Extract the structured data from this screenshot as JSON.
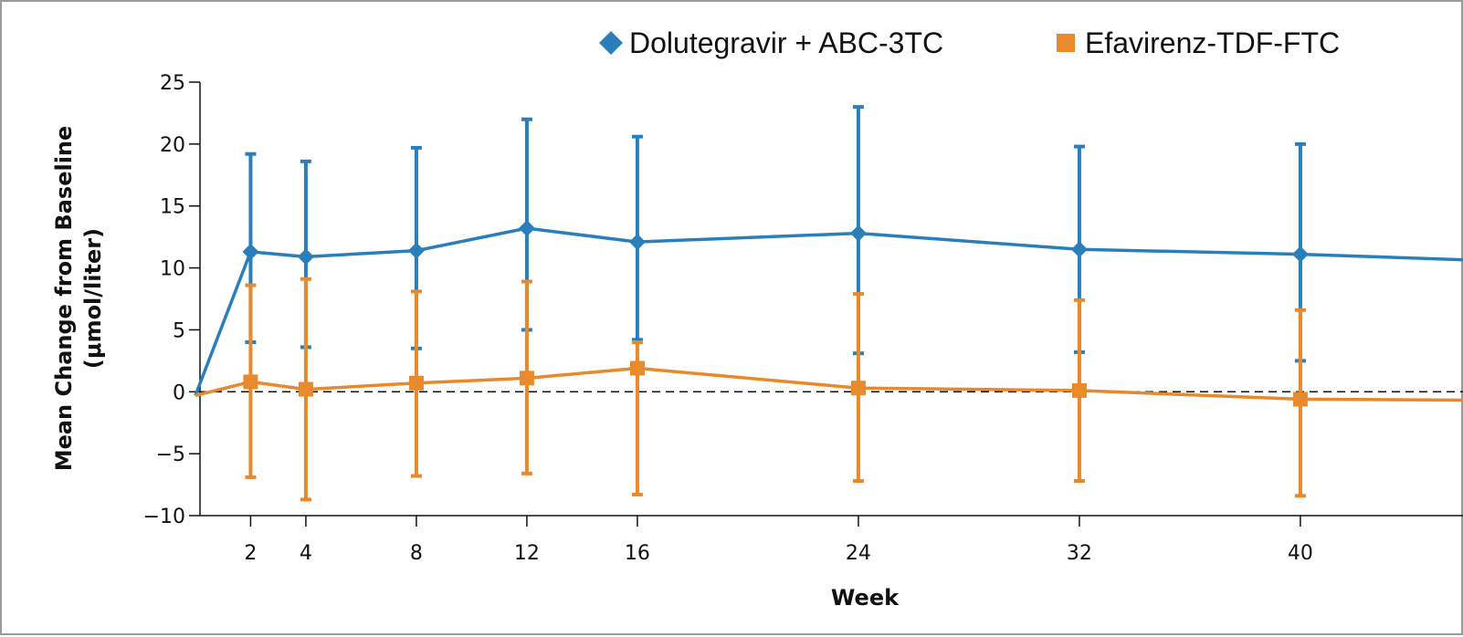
{
  "chart_data": {
    "type": "line",
    "xlabel": "Week",
    "ylabel_line1": "Mean Change from Baseline",
    "ylabel_line2": "(μmol/liter)",
    "ylim": [
      -10,
      25
    ],
    "yticks": [
      -10,
      -5,
      0,
      5,
      10,
      15,
      20,
      25
    ],
    "ytick_labels": [
      "−10",
      "−5",
      "0",
      "5",
      "10",
      "15",
      "20",
      "25"
    ],
    "xticks": [
      2,
      4,
      8,
      12,
      16,
      24,
      32,
      40
    ],
    "xtick_labels": [
      "2",
      "4",
      "8",
      "12",
      "16",
      "24",
      "32",
      "40"
    ],
    "reference_line": 0,
    "legend_position": "top-right",
    "series": [
      {
        "name": "Dolutegravir + ABC-3TC",
        "color": "#2a7fba",
        "marker": "diamond",
        "x": [
          0,
          2,
          4,
          8,
          12,
          16,
          24,
          32,
          40,
          48
        ],
        "y": [
          -0.3,
          11.3,
          10.9,
          11.4,
          13.2,
          12.1,
          12.8,
          11.5,
          11.1,
          10.5
        ],
        "err_low": [
          null,
          4.0,
          3.6,
          3.5,
          5.0,
          4.2,
          3.1,
          3.2,
          2.5,
          null
        ],
        "err_high": [
          null,
          19.2,
          18.6,
          19.7,
          22.0,
          20.6,
          23.0,
          19.8,
          20.0,
          null
        ]
      },
      {
        "name": "Efavirenz-TDF-FTC",
        "color": "#e8892b",
        "marker": "square",
        "x": [
          0,
          2,
          4,
          8,
          12,
          16,
          24,
          32,
          40,
          48
        ],
        "y": [
          -0.3,
          0.8,
          0.2,
          0.7,
          1.1,
          1.9,
          0.3,
          0.1,
          -0.6,
          -0.7
        ],
        "err_low": [
          null,
          -6.9,
          -8.7,
          -6.8,
          -6.6,
          -8.3,
          -7.2,
          -7.2,
          -8.4,
          null
        ],
        "err_high": [
          null,
          8.6,
          9.1,
          8.1,
          8.9,
          4.0,
          7.9,
          7.4,
          6.6,
          null
        ]
      }
    ]
  }
}
